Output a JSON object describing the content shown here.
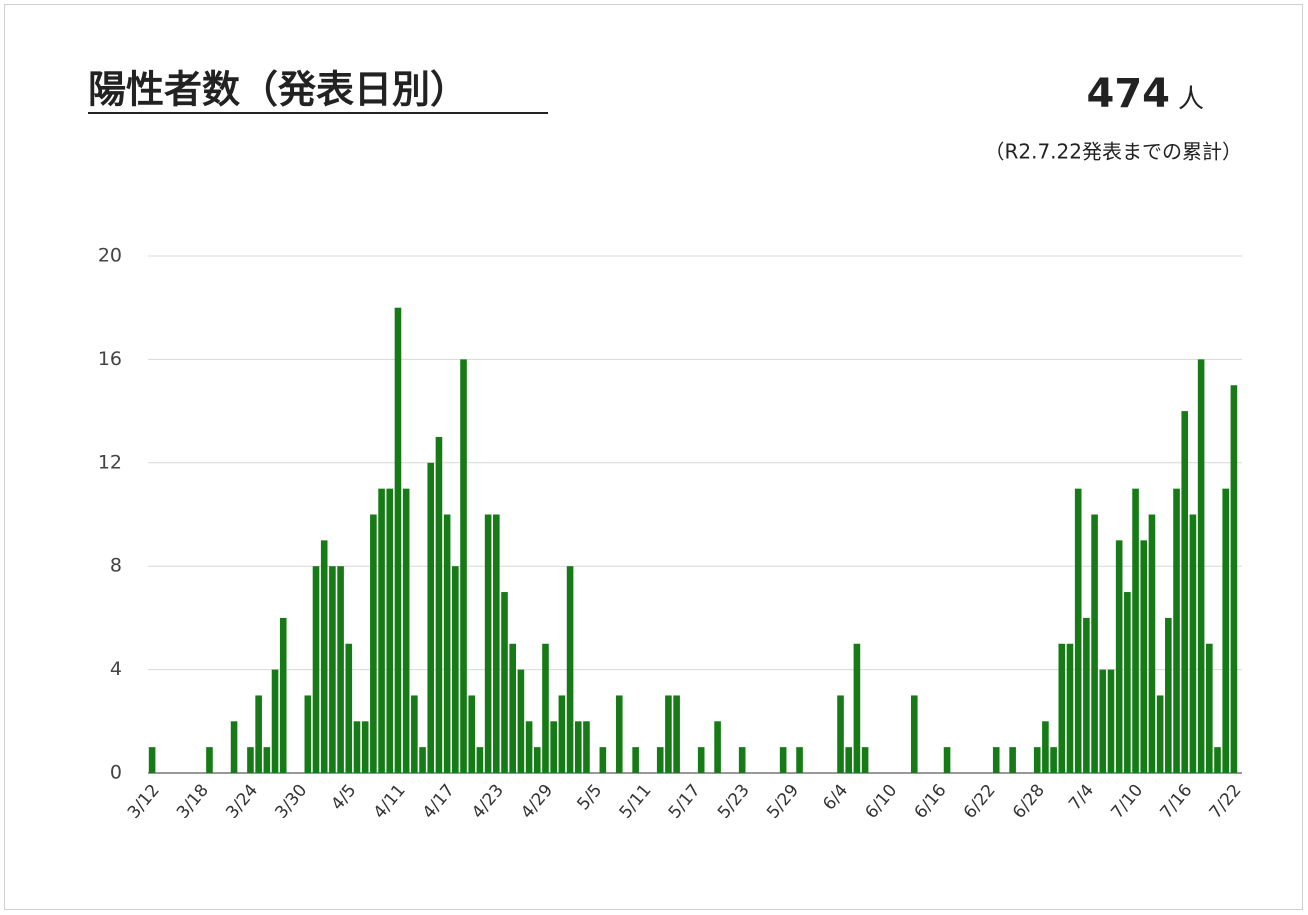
{
  "chart_data": {
    "type": "bar",
    "title": "陽性者数（発表日別）",
    "total": 474,
    "total_unit": "人",
    "note": "（R2.7.22発表までの累計）",
    "categories": [
      "3/12",
      null,
      null,
      null,
      null,
      null,
      "3/18",
      null,
      null,
      null,
      null,
      null,
      "3/24",
      null,
      null,
      null,
      null,
      null,
      "3/30",
      null,
      null,
      null,
      null,
      null,
      "4/5",
      null,
      null,
      null,
      null,
      null,
      "4/11",
      null,
      null,
      null,
      null,
      null,
      "4/17",
      null,
      null,
      null,
      null,
      null,
      "4/23",
      null,
      null,
      null,
      null,
      null,
      "4/29",
      null,
      null,
      null,
      null,
      null,
      "5/5",
      null,
      null,
      null,
      null,
      null,
      "5/11",
      null,
      null,
      null,
      null,
      null,
      "5/17",
      null,
      null,
      null,
      null,
      null,
      "5/23",
      null,
      null,
      null,
      null,
      null,
      "5/29",
      null,
      null,
      null,
      null,
      null,
      "6/4",
      null,
      null,
      null,
      null,
      null,
      "6/10",
      null,
      null,
      null,
      null,
      null,
      "6/16",
      null,
      null,
      null,
      null,
      null,
      "6/22",
      null,
      null,
      null,
      null,
      null,
      "6/28",
      null,
      null,
      null,
      null,
      null,
      "7/4",
      null,
      null,
      null,
      null,
      null,
      "7/10",
      null,
      null,
      null,
      null,
      null,
      "7/16",
      null,
      null,
      null,
      null,
      null,
      "7/22"
    ],
    "values": [
      1,
      0,
      0,
      0,
      0,
      0,
      0,
      1,
      0,
      0,
      2,
      0,
      1,
      3,
      1,
      4,
      6,
      0,
      0,
      3,
      8,
      9,
      8,
      8,
      5,
      2,
      2,
      10,
      11,
      11,
      18,
      11,
      3,
      1,
      12,
      13,
      10,
      8,
      16,
      3,
      1,
      10,
      10,
      7,
      5,
      4,
      2,
      1,
      5,
      2,
      3,
      8,
      2,
      2,
      0,
      1,
      0,
      3,
      0,
      1,
      0,
      0,
      1,
      3,
      3,
      0,
      0,
      1,
      0,
      2,
      0,
      0,
      1,
      0,
      0,
      0,
      0,
      1,
      0,
      1,
      0,
      0,
      0,
      0,
      3,
      1,
      5,
      1,
      0,
      0,
      0,
      0,
      0,
      3,
      0,
      0,
      0,
      1,
      0,
      0,
      0,
      0,
      0,
      1,
      0,
      1,
      0,
      0,
      1,
      2,
      1,
      5,
      5,
      11,
      6,
      10,
      4,
      4,
      9,
      7,
      11,
      9,
      10,
      3,
      6,
      11,
      14,
      10,
      16,
      5,
      1,
      11,
      15
    ],
    "color": "#167a16",
    "ylim": [
      0,
      20
    ],
    "yticks": [
      0,
      4,
      8,
      12,
      16,
      20
    ],
    "grid": true
  }
}
